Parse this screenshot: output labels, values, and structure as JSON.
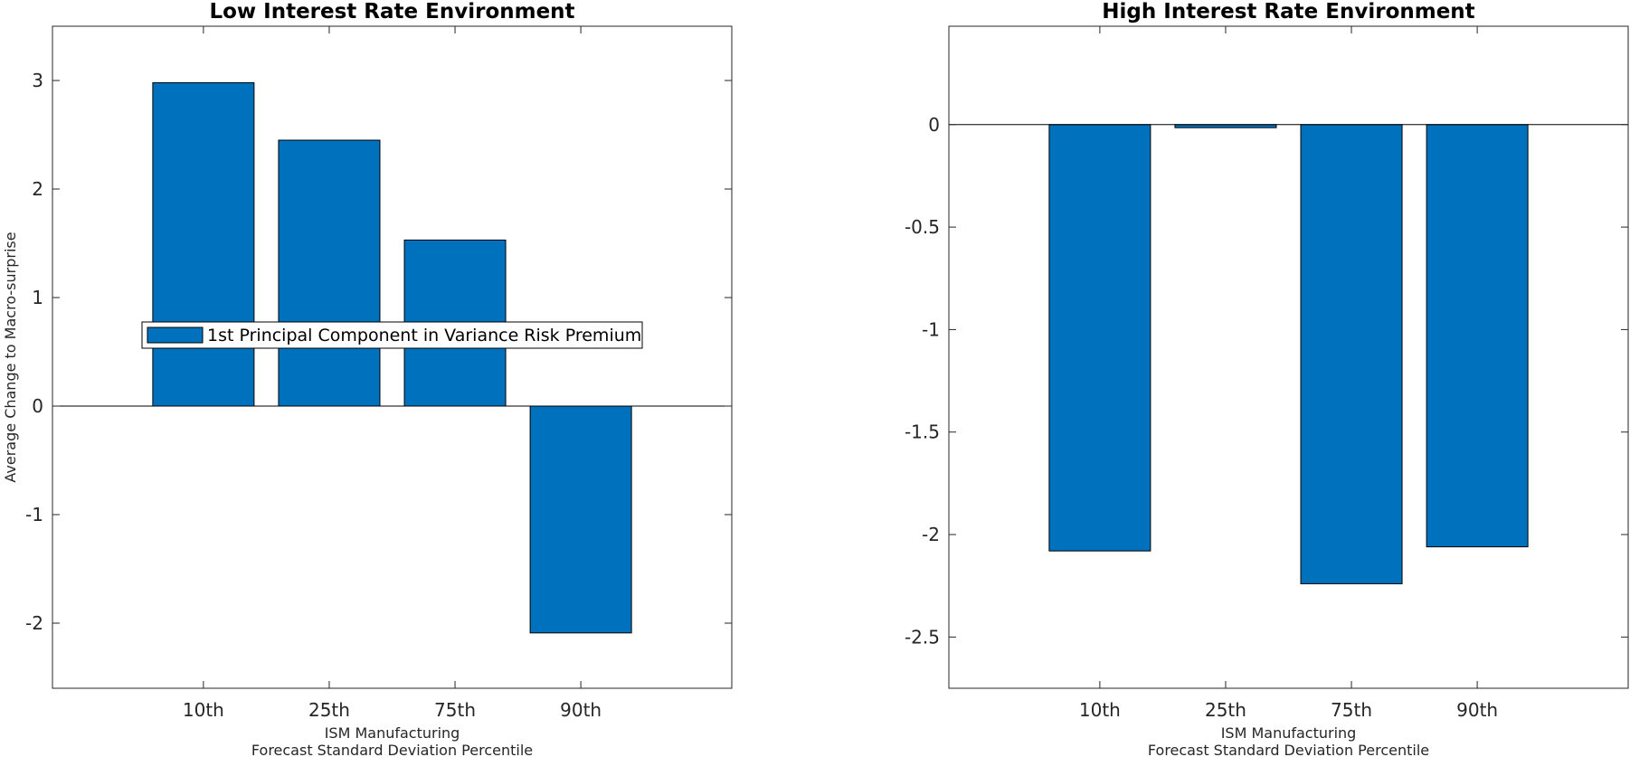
{
  "chart_data": [
    {
      "type": "bar",
      "title": "Low Interest Rate Environment",
      "categories": [
        "10th",
        "25th",
        "75th",
        "90th"
      ],
      "series": [
        {
          "name": "1st Principal Component in Variance Risk Premium",
          "values": [
            2.98,
            2.45,
            1.53,
            -2.09
          ]
        }
      ],
      "xlabel": [
        "ISM Manufacturing",
        "Forecast Standard Deviation Percentile"
      ],
      "ylabel": "Average Change to Macro-surprise",
      "ylim": [
        -2.6,
        3.5
      ],
      "yticks": [
        -2,
        -1,
        0,
        1,
        2,
        3
      ],
      "ytick_labels": [
        "-2",
        "-1",
        "0",
        "1",
        "2",
        "3"
      ],
      "legend": "center",
      "grid": false,
      "bar_color": "#0072BD"
    },
    {
      "type": "bar",
      "title": "High Interest Rate Environment",
      "categories": [
        "10th",
        "25th",
        "75th",
        "90th"
      ],
      "series": [
        {
          "values": [
            -2.08,
            -0.015,
            -2.24,
            -2.06
          ]
        }
      ],
      "xlabel": [
        "ISM Manufacturing",
        "Forecast Standard Deviation Percentile"
      ],
      "ylabel": "",
      "ylim": [
        -2.75,
        0.48
      ],
      "yticks": [
        -2.5,
        -2,
        -1.5,
        -1,
        -0.5,
        0
      ],
      "ytick_labels": [
        "-2.5",
        "-2",
        "-1.5",
        "-1",
        "-0.5",
        "0"
      ],
      "grid": false,
      "bar_color": "#0072BD"
    }
  ]
}
